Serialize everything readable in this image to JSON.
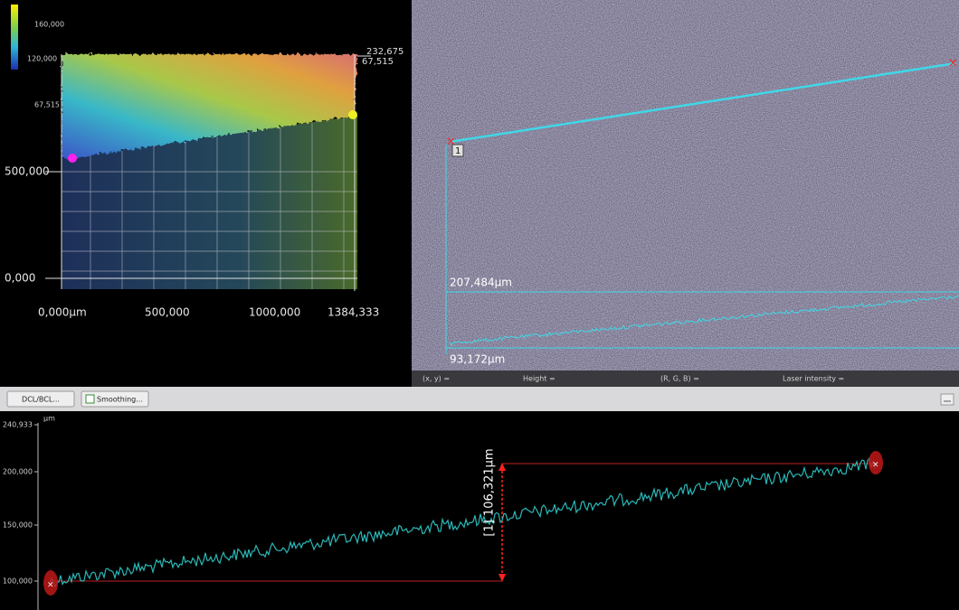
{
  "view3d": {
    "scale": [
      "160,000",
      "120,000",
      "67,515"
    ],
    "axis_labels": [
      "500,000",
      "0,000",
      "0,000µm",
      "500,000",
      "1000,000",
      "1384,333",
      "232,675",
      "67,515"
    ]
  },
  "image": {
    "line_number": "1",
    "max_label": "207,484µm",
    "min_label": "93,172µm"
  },
  "status_bar": [
    "(x, y) =",
    "Height =",
    "(R, G, B) =",
    "Laser intensity ="
  ],
  "toolbar": [
    "DCL/BCL...",
    "Smoothing..."
  ],
  "profile": {
    "unit": "µm",
    "y_labels": [
      "240,933",
      "200,000",
      "150,000",
      "100,000"
    ],
    "measurement": "[1] 106,321µm"
  }
}
